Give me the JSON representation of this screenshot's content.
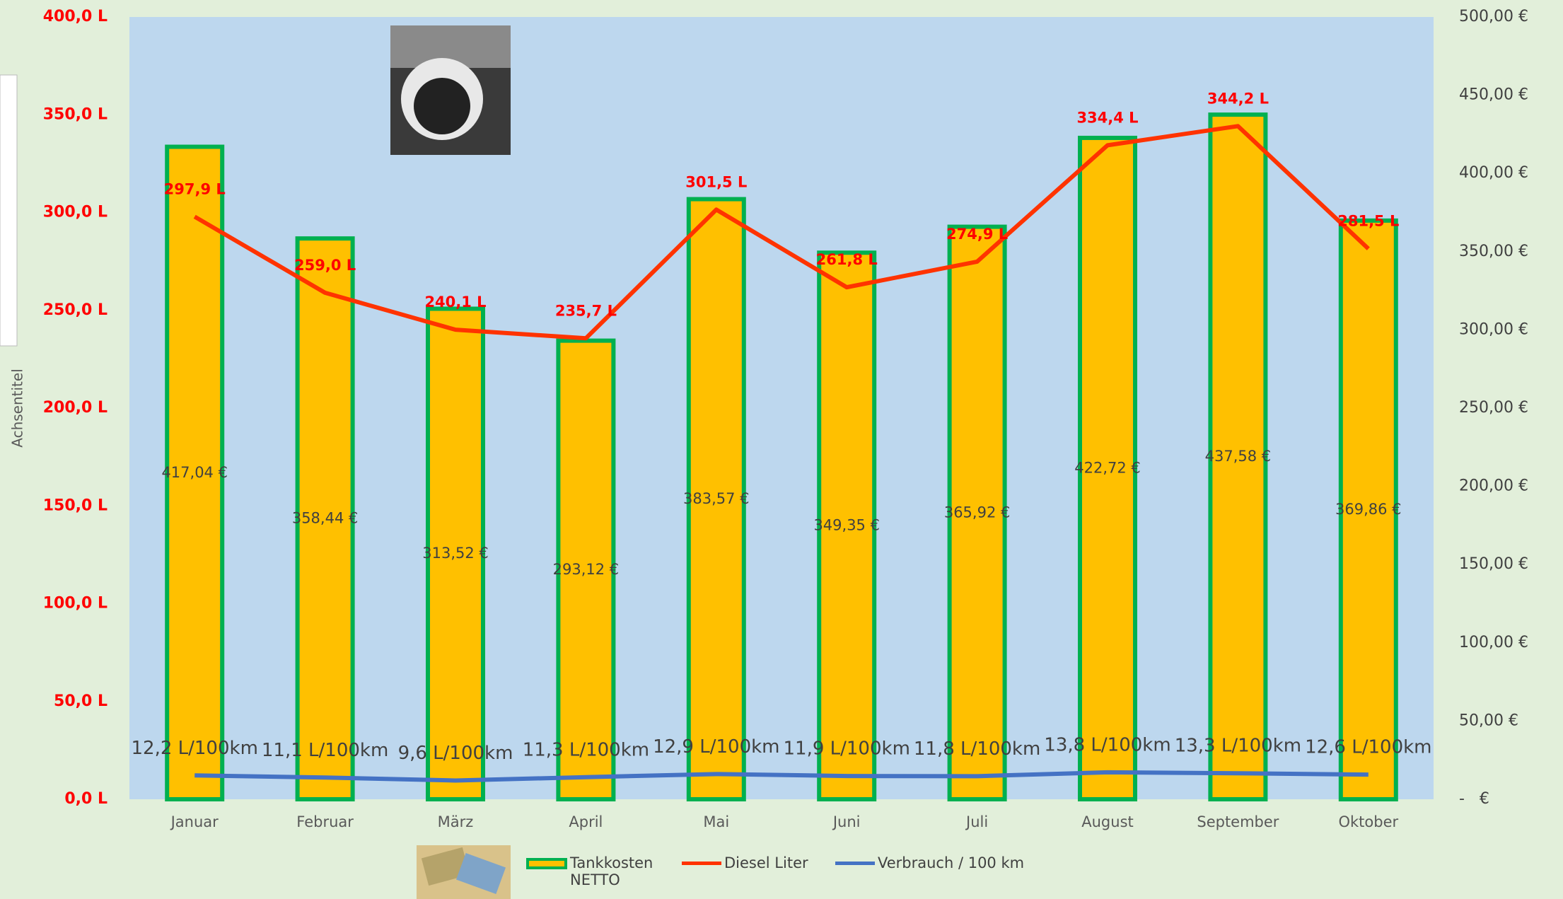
{
  "chart_data": {
    "type": "combo",
    "y_axis_title": "Achsentitel",
    "categories": [
      "Januar",
      "Februar",
      "März",
      "April",
      "Mai",
      "Juni",
      "Juli",
      "August",
      "September",
      "Oktober"
    ],
    "ylim": [
      0,
      400
    ],
    "yticks": [
      {
        "value": 0,
        "label": "0,0 L"
      },
      {
        "value": 50,
        "label": "50,0 L"
      },
      {
        "value": 100,
        "label": "100,0 L"
      },
      {
        "value": 150,
        "label": "150,0 L"
      },
      {
        "value": 200,
        "label": "200,0 L"
      },
      {
        "value": 250,
        "label": "250,0 L"
      },
      {
        "value": 300,
        "label": "300,0 L"
      },
      {
        "value": 350,
        "label": "350,0 L"
      },
      {
        "value": 400,
        "label": "400,0 L"
      }
    ],
    "y2lim": [
      0,
      500
    ],
    "y2ticks": [
      {
        "value": 0,
        "label": "-   €"
      },
      {
        "value": 50,
        "label": "50,00 €"
      },
      {
        "value": 100,
        "label": "100,00 €"
      },
      {
        "value": 150,
        "label": "150,00 €"
      },
      {
        "value": 200,
        "label": "200,00 €"
      },
      {
        "value": 250,
        "label": "250,00 €"
      },
      {
        "value": 300,
        "label": "300,00 €"
      },
      {
        "value": 350,
        "label": "350,00 €"
      },
      {
        "value": 400,
        "label": "400,00 €"
      },
      {
        "value": 450,
        "label": "450,00 €"
      },
      {
        "value": 500,
        "label": "500,00 €"
      }
    ],
    "series": [
      {
        "name": "Tankkosten NETTO",
        "type": "bar",
        "axis": "y2",
        "color": "#ffc000",
        "edge_color": "#00b050",
        "values": [
          417.04,
          358.44,
          313.52,
          293.12,
          383.57,
          349.35,
          365.92,
          422.72,
          437.58,
          369.86
        ],
        "value_labels": [
          "417,04 €",
          "358,44 €",
          "313,52 €",
          "293,12 €",
          "383,57 €",
          "349,35 €",
          "365,92 €",
          "422,72 €",
          "437,58 €",
          "369,86 €"
        ]
      },
      {
        "name": "Diesel Liter",
        "type": "line",
        "color": "#ff3300",
        "values": [
          297.9,
          259.0,
          240.1,
          235.7,
          301.5,
          261.8,
          274.9,
          334.4,
          344.2,
          281.5
        ],
        "value_labels": [
          "297,9 L",
          "259,0 L",
          "240,1 L",
          "235,7 L",
          "301,5 L",
          "261,8 L",
          "274,9 L",
          "334,4 L",
          "344,2 L",
          "281,5 L"
        ]
      },
      {
        "name": "Verbrauch / 100 km",
        "type": "line",
        "color": "#4472c4",
        "values": [
          12.2,
          11.1,
          9.6,
          11.3,
          12.9,
          11.9,
          11.8,
          13.8,
          13.3,
          12.6
        ],
        "value_labels": [
          "12,2 L/100km",
          "11,1 L/100km",
          "9,6 L/100km",
          "11,3 L/100km",
          "12,9 L/100km",
          "11,9 L/100km",
          "11,8 L/100km",
          "13,8 L/100km",
          "13,3 L/100km",
          "12,6 L/100km"
        ]
      }
    ]
  }
}
